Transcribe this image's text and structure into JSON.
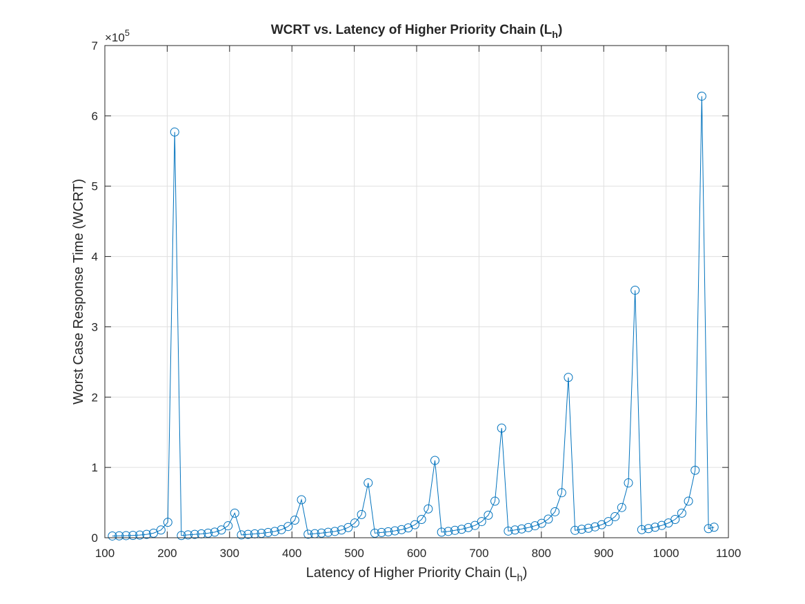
{
  "chart_data": {
    "type": "line",
    "title": [
      "WCRT vs. Latency of Higher Priority Chain (L",
      "h",
      ")"
    ],
    "xlabel": [
      "Latency of Higher Priority Chain (L",
      "h",
      ")"
    ],
    "ylabel": "Worst Case Response Time (WCRT)",
    "y_exponent": [
      "×10",
      "5"
    ],
    "x": [
      112,
      123,
      134,
      145,
      156,
      167,
      178,
      190,
      201,
      212,
      222.7,
      233.4,
      244.1,
      254.8,
      265.5,
      276.2,
      286.9,
      297.6,
      308.3,
      319,
      329.7,
      340.4,
      351.1,
      361.8,
      372.5,
      383.2,
      393.9,
      404.6,
      415.3,
      426,
      436.7,
      447.4,
      458.1,
      468.8,
      479.5,
      490.2,
      500.9,
      511.6,
      522.3,
      533,
      543.7,
      554.4,
      565.1,
      575.8,
      586.5,
      597.2,
      607.9,
      618.6,
      629.3,
      640,
      650.7,
      661.4,
      672.1,
      682.8,
      693.5,
      704.2,
      714.9,
      725.6,
      736.3,
      747,
      757.7,
      768.4,
      779.1,
      789.8,
      800.5,
      811.2,
      821.9,
      832.6,
      843.3,
      854,
      864.7,
      875.4,
      886.1,
      896.8,
      907.5,
      918.2,
      928.9,
      939.6,
      950.3,
      961,
      971.7,
      982.4,
      993.1,
      1003.8,
      1014.5,
      1025.2,
      1035.9,
      1046.6,
      1057.3,
      1068,
      1077
    ],
    "series": [
      {
        "color": "#0072bd",
        "marker": "circle",
        "values": [
          2500,
          2700,
          3000,
          3300,
          3800,
          4800,
          6500,
          11000,
          22000,
          577000,
          3200,
          4000,
          4800,
          5500,
          6500,
          8000,
          11000,
          17000,
          35000,
          4000,
          4800,
          5500,
          6300,
          7500,
          9000,
          11500,
          16000,
          25000,
          54000,
          5000,
          5800,
          6600,
          7700,
          9000,
          11000,
          14500,
          21000,
          33000,
          78000,
          6500,
          7500,
          8500,
          9800,
          11500,
          14000,
          18500,
          26000,
          41000,
          110000,
          8000,
          9000,
          10500,
          12000,
          14500,
          17500,
          23000,
          32000,
          52000,
          156000,
          9500,
          11000,
          12500,
          14500,
          17000,
          20500,
          26500,
          37000,
          64000,
          228000,
          10500,
          12000,
          13500,
          15500,
          18500,
          23000,
          30000,
          43000,
          78000,
          352000,
          11500,
          13000,
          15000,
          17500,
          21000,
          26000,
          35000,
          52000,
          96000,
          628000,
          13000,
          15000
        ]
      }
    ],
    "xlim": [
      100,
      1100
    ],
    "xticks": [
      100,
      200,
      300,
      400,
      500,
      600,
      700,
      800,
      900,
      1000,
      1100
    ],
    "ylim": [
      0,
      700000
    ],
    "yticks": [
      {
        "value": 0,
        "label": "0"
      },
      {
        "value": 100000,
        "label": "1"
      },
      {
        "value": 200000,
        "label": "2"
      },
      {
        "value": 300000,
        "label": "3"
      },
      {
        "value": 400000,
        "label": "4"
      },
      {
        "value": 500000,
        "label": "5"
      },
      {
        "value": 600000,
        "label": "6"
      },
      {
        "value": 700000,
        "label": "7"
      }
    ],
    "grid": true
  }
}
